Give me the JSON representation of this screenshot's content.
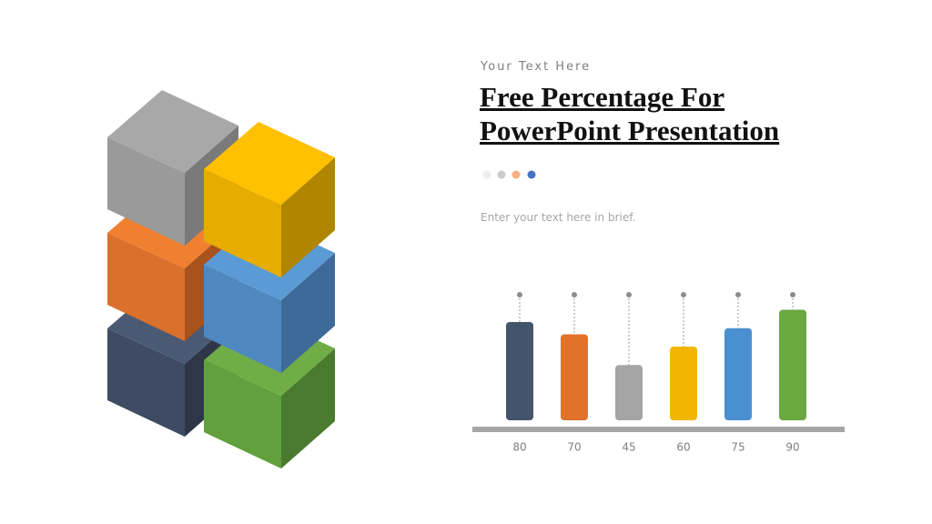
{
  "chart_data": {
    "type": "bar",
    "subtitle": "Your Text Here",
    "title": "Free Percentage For PowerPoint Presentation",
    "text": "Enter your text here in brief.",
    "values": [
      80,
      70,
      45,
      60,
      75,
      90
    ],
    "colors": [
      "#44546a",
      "#e0722a",
      "#a5a5a5",
      "#f2b600",
      "#4a90d0",
      "#6aa840"
    ]
  }
}
